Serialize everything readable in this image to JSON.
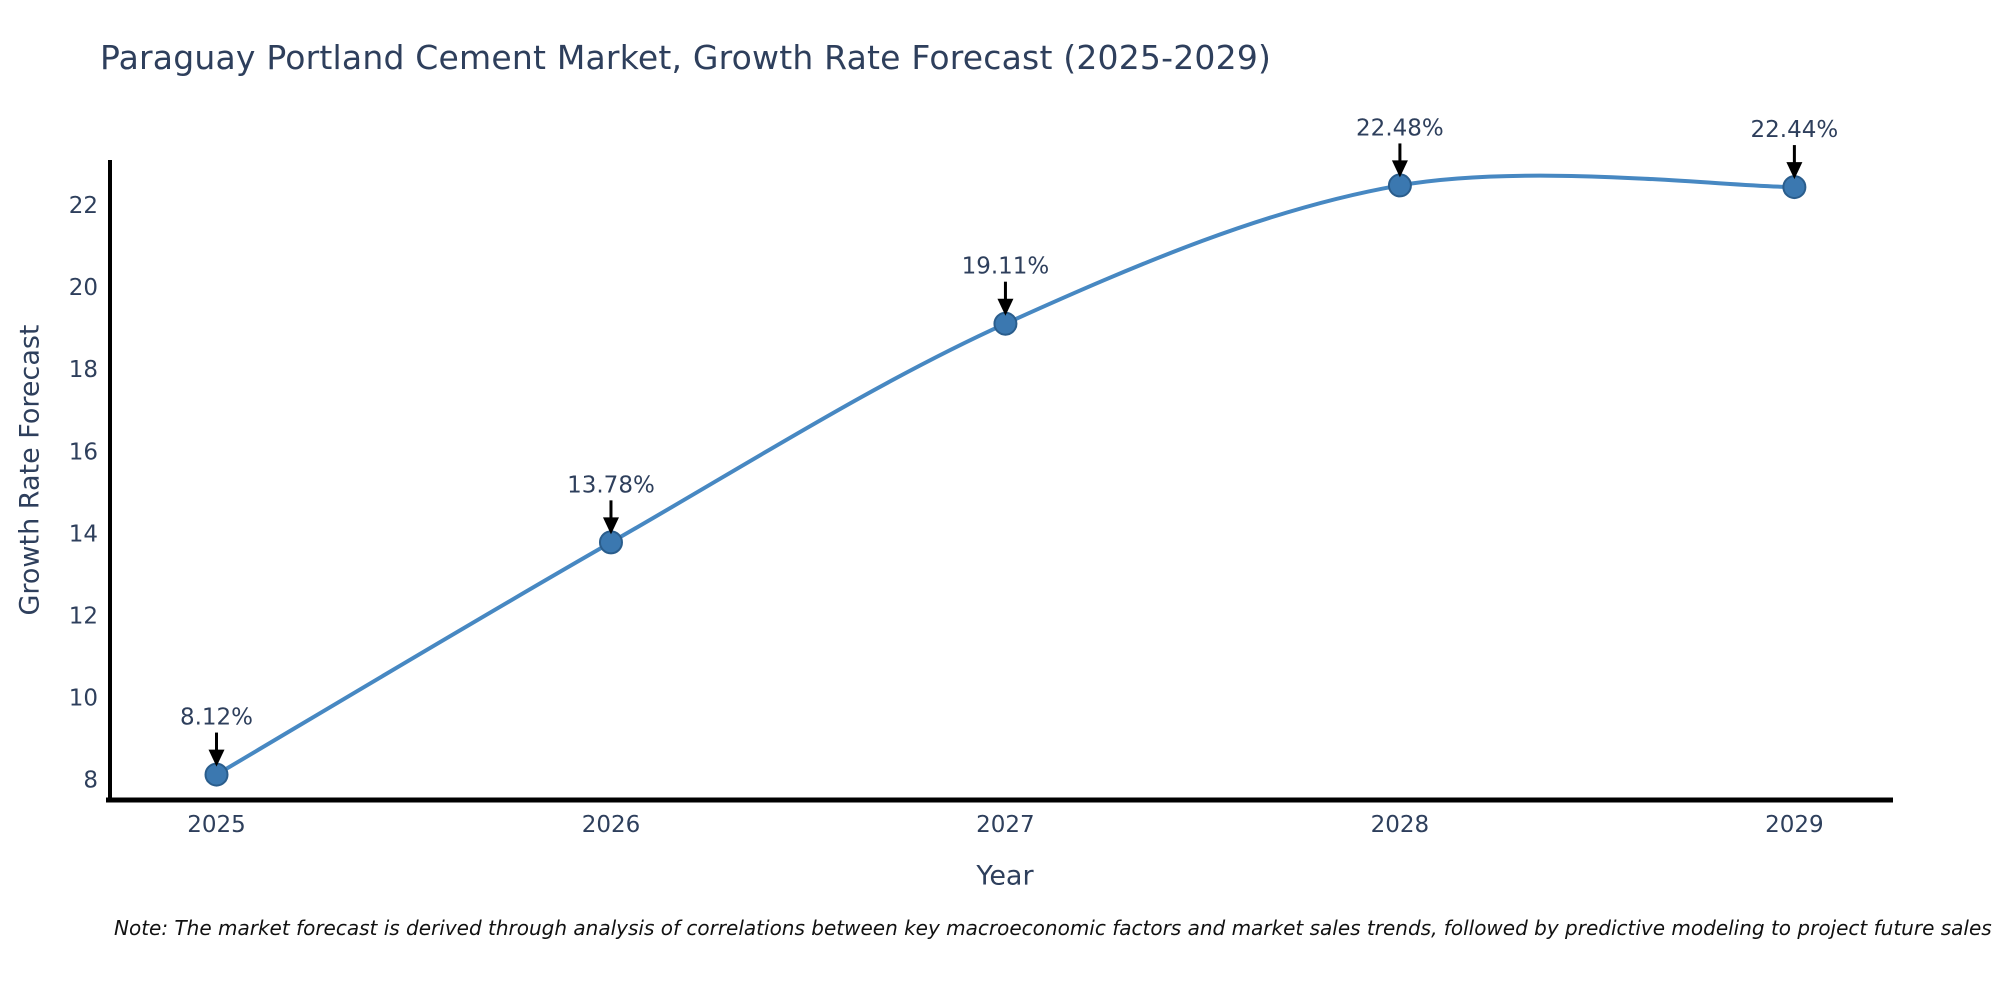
{
  "note": "Note: The market forecast is derived through analysis of correlations between key macroeconomic factors and market sales trends, followed by predictive modeling to project future sales",
  "chart_data": {
    "type": "line",
    "title": "Paraguay Portland Cement Market, Growth Rate Forecast (2025-2029)",
    "xlabel": "Year",
    "ylabel": "Growth Rate Forecast",
    "x": [
      2025,
      2026,
      2027,
      2028,
      2029
    ],
    "series": [
      {
        "name": "Growth Rate Forecast",
        "values": [
          8.12,
          13.78,
          19.11,
          22.48,
          22.44
        ],
        "point_labels": [
          "8.12%",
          "13.78%",
          "19.11%",
          "22.48%",
          "22.44%"
        ]
      }
    ],
    "yticks": [
      8,
      10,
      12,
      14,
      16,
      18,
      20,
      22
    ],
    "xlim": [
      2024.73,
      2029.25
    ],
    "ylim": [
      7.5,
      23.1
    ],
    "grid": false,
    "legend": "none",
    "curve": "spline",
    "annotations": "arrow-to-point",
    "colors": {
      "line": "#4788c2",
      "marker_fill": "#3b78b0",
      "marker_edge": "#2a5d8c",
      "text": "#2e3f5c",
      "axis": "#000000",
      "arrow": "#000000",
      "note_text": "#111111"
    }
  }
}
